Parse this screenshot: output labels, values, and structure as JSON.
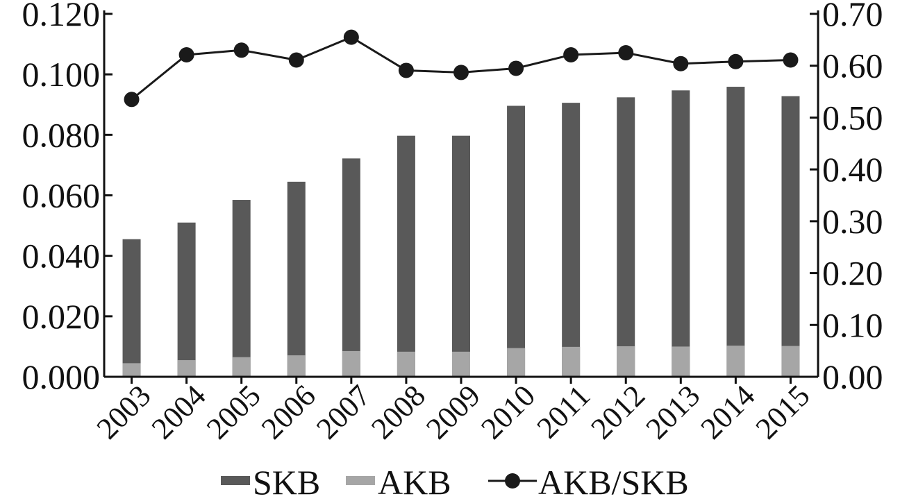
{
  "chart_data": {
    "type": "bar",
    "categories": [
      "2003",
      "2004",
      "2005",
      "2006",
      "2007",
      "2008",
      "2009",
      "2010",
      "2011",
      "2012",
      "2013",
      "2014",
      "2015"
    ],
    "series": [
      {
        "name": "SKB",
        "chart_type": "bar",
        "axis": "left",
        "color": "#595959",
        "values": [
          0.0455,
          0.051,
          0.0585,
          0.0645,
          0.0722,
          0.0797,
          0.0797,
          0.0896,
          0.0906,
          0.0924,
          0.0947,
          0.0959,
          0.0928
        ]
      },
      {
        "name": "AKB",
        "chart_type": "bar",
        "axis": "left",
        "color": "#a6a6a6",
        "values": [
          0.0045,
          0.0055,
          0.0065,
          0.0071,
          0.0085,
          0.0083,
          0.0083,
          0.0095,
          0.0099,
          0.0101,
          0.01,
          0.0103,
          0.0102
        ]
      },
      {
        "name": "AKB/SKB",
        "chart_type": "line",
        "axis": "right",
        "color": "#1a1a1a",
        "values": [
          0.535,
          0.621,
          0.63,
          0.611,
          0.655,
          0.591,
          0.587,
          0.595,
          0.621,
          0.625,
          0.604,
          0.608,
          0.611
        ]
      }
    ],
    "y_left": {
      "ylim": [
        0,
        0.12
      ],
      "ticks": [
        "0.000",
        "0.020",
        "0.040",
        "0.060",
        "0.080",
        "0.100",
        "0.120"
      ]
    },
    "y_right": {
      "ylim": [
        0,
        0.7
      ],
      "ticks": [
        "0.00",
        "0.10",
        "0.20",
        "0.30",
        "0.40",
        "0.50",
        "0.60",
        "0.70"
      ]
    },
    "bar_mode": "overlay",
    "grid": false,
    "legend_position": "bottom",
    "title": "",
    "xlabel": "",
    "ylabel": ""
  }
}
